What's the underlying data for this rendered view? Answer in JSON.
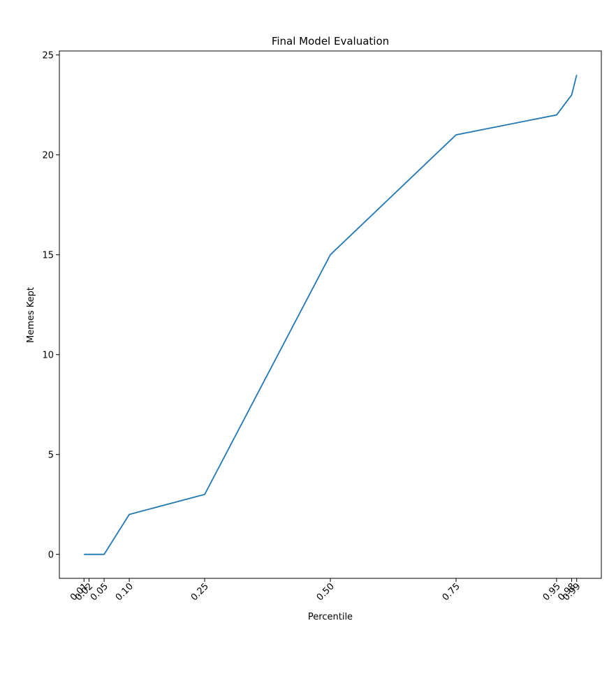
{
  "chart_data": {
    "type": "line",
    "title": "Final Model Evaluation",
    "xlabel": "Percentile",
    "ylabel": "Memes Kept",
    "x": [
      0.01,
      0.02,
      0.05,
      0.1,
      0.25,
      0.5,
      0.75,
      0.95,
      0.98,
      0.99
    ],
    "series": [
      {
        "name": "Memes Kept",
        "color": "#1f77b4",
        "values": [
          0,
          0,
          0,
          2,
          3,
          15,
          21,
          22,
          23,
          24
        ]
      }
    ],
    "xlim": [
      -0.039,
      1.039
    ],
    "ylim": [
      -1.2,
      25.2
    ],
    "xticks": [
      {
        "value": 0.01,
        "label": "0.01"
      },
      {
        "value": 0.02,
        "label": "0.02"
      },
      {
        "value": 0.05,
        "label": "0.05"
      },
      {
        "value": 0.1,
        "label": "0.10"
      },
      {
        "value": 0.25,
        "label": "0.25"
      },
      {
        "value": 0.5,
        "label": "0.50"
      },
      {
        "value": 0.75,
        "label": "0.75"
      },
      {
        "value": 0.95,
        "label": "0.95"
      },
      {
        "value": 0.98,
        "label": "0.98"
      },
      {
        "value": 0.99,
        "label": "0.99"
      }
    ],
    "yticks": [
      0,
      5,
      10,
      15,
      20,
      25
    ],
    "grid": false
  }
}
